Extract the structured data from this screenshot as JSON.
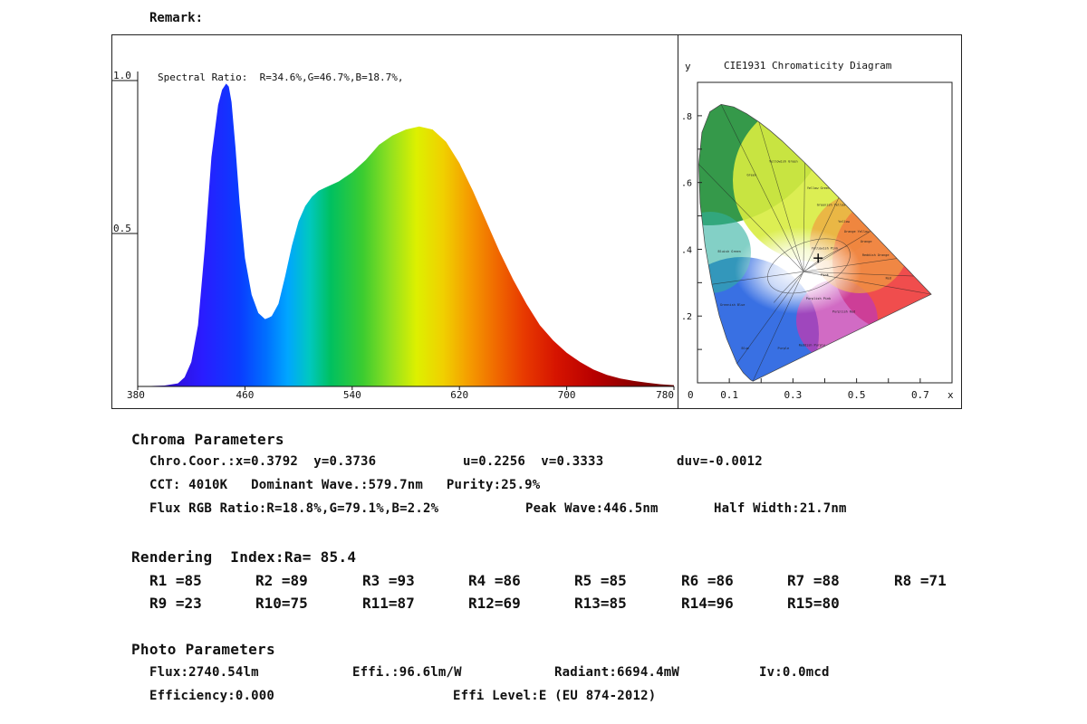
{
  "remark_label": "Remark:",
  "chart_data": [
    {
      "type": "area",
      "title": "Spectral Ratio:  R=34.6%,G=46.7%,B=18.7%,",
      "xlabel": "",
      "ylabel": "",
      "xlim": [
        380,
        780
      ],
      "ylim": [
        0,
        1.0
      ],
      "x_ticks": [
        "380",
        "460",
        "540",
        "620",
        "700",
        "780"
      ],
      "y_ticks": [
        "1.0",
        "0.5"
      ],
      "x": [
        380,
        400,
        410,
        415,
        420,
        425,
        430,
        435,
        440,
        443,
        446,
        448,
        450,
        453,
        456,
        460,
        465,
        470,
        475,
        478,
        480,
        485,
        490,
        495,
        500,
        505,
        510,
        515,
        520,
        525,
        530,
        540,
        550,
        560,
        570,
        580,
        590,
        600,
        610,
        620,
        630,
        640,
        650,
        660,
        670,
        680,
        690,
        700,
        710,
        720,
        730,
        740,
        750,
        760,
        770,
        780
      ],
      "values": [
        0,
        0.003,
        0.01,
        0.03,
        0.08,
        0.2,
        0.45,
        0.75,
        0.92,
        0.97,
        0.99,
        0.98,
        0.93,
        0.78,
        0.6,
        0.42,
        0.3,
        0.24,
        0.22,
        0.225,
        0.23,
        0.27,
        0.36,
        0.46,
        0.54,
        0.59,
        0.62,
        0.64,
        0.65,
        0.66,
        0.67,
        0.7,
        0.74,
        0.79,
        0.82,
        0.84,
        0.85,
        0.84,
        0.8,
        0.73,
        0.64,
        0.54,
        0.44,
        0.35,
        0.27,
        0.2,
        0.15,
        0.11,
        0.08,
        0.055,
        0.038,
        0.026,
        0.018,
        0.012,
        0.007,
        0.004
      ]
    },
    {
      "type": "scatter",
      "title": "CIE1931 Chromaticity Diagram",
      "xlabel": "x",
      "ylabel": "y",
      "xlim": [
        0,
        0.8
      ],
      "ylim": [
        0,
        0.9
      ],
      "x_ticks": [
        "0",
        "0.1",
        "0.3",
        "0.5",
        "0.7"
      ],
      "y_ticks": [
        ".8",
        ".6",
        ".4",
        ".2"
      ],
      "locus": [
        [
          0.1741,
          0.005
        ],
        [
          0.1666,
          0.0089
        ],
        [
          0.144,
          0.0297
        ],
        [
          0.1241,
          0.0578
        ],
        [
          0.0913,
          0.1327
        ],
        [
          0.0687,
          0.2007
        ],
        [
          0.0454,
          0.295
        ],
        [
          0.0235,
          0.4127
        ],
        [
          0.0082,
          0.5384
        ],
        [
          0.0039,
          0.6548
        ],
        [
          0.0139,
          0.7502
        ],
        [
          0.0389,
          0.812
        ],
        [
          0.0743,
          0.8338
        ],
        [
          0.1142,
          0.8262
        ],
        [
          0.1547,
          0.8059
        ],
        [
          0.1929,
          0.7816
        ],
        [
          0.2296,
          0.7543
        ],
        [
          0.2658,
          0.7243
        ],
        [
          0.3016,
          0.6923
        ],
        [
          0.3373,
          0.6589
        ],
        [
          0.3731,
          0.6245
        ],
        [
          0.4087,
          0.5896
        ],
        [
          0.4441,
          0.5547
        ],
        [
          0.4788,
          0.5202
        ],
        [
          0.5125,
          0.4866
        ],
        [
          0.5448,
          0.4544
        ],
        [
          0.5752,
          0.4242
        ],
        [
          0.6029,
          0.3965
        ],
        [
          0.627,
          0.3725
        ],
        [
          0.6482,
          0.3514
        ],
        [
          0.6658,
          0.334
        ],
        [
          0.6801,
          0.3197
        ],
        [
          0.6915,
          0.3083
        ],
        [
          0.7006,
          0.2993
        ],
        [
          0.7347,
          0.2653
        ]
      ],
      "point": {
        "x": 0.3792,
        "y": 0.3736
      },
      "region_labels": [
        "Green",
        "Yellowish Green",
        "Yellow Green",
        "Greenish Yellow",
        "Yellow",
        "Orange Yellow",
        "Orange",
        "Bluish Green",
        "Yellowish Pink",
        "Reddish Orange",
        "Pink",
        "Red",
        "Greenish Blue",
        "Purplish Pink",
        "Purplish Red",
        "Blue",
        "Purple",
        "Reddish Purple"
      ]
    }
  ],
  "chroma": {
    "heading": "Chroma Parameters",
    "line1": [
      "Chro.Coor.:x=0.3792  y=0.3736",
      "u=0.2256  v=0.3333",
      "duv=-0.0012"
    ],
    "line2": "CCT: 4010K   Dominant Wave.:579.7nm   Purity:25.9%",
    "line3": [
      "Flux RGB Ratio:R=18.8%,G=79.1%,B=2.2%",
      "Peak Wave:446.5nm",
      "Half Width:21.7nm"
    ]
  },
  "rendering": {
    "heading": "Rendering  Index:Ra= 85.4",
    "row1": [
      "R1 =85",
      "R2 =89",
      "R3 =93",
      "R4 =86",
      "R5 =85",
      "R6 =86",
      "R7 =88",
      "R8 =71"
    ],
    "row2": [
      "R9 =23",
      "R10=75",
      "R11=87",
      "R12=69",
      "R13=85",
      "R14=96",
      "R15=80"
    ]
  },
  "photo": {
    "heading": "Photo Parameters",
    "flux": "Flux:2740.54lm",
    "effi": "Effi.:96.6lm/W",
    "radiant": "Radiant:6694.4mW",
    "iv": "Iv:0.0mcd",
    "efficiency": "Efficiency:0.000",
    "effi_level": "Effi Level:E (EU 874-2012)"
  }
}
